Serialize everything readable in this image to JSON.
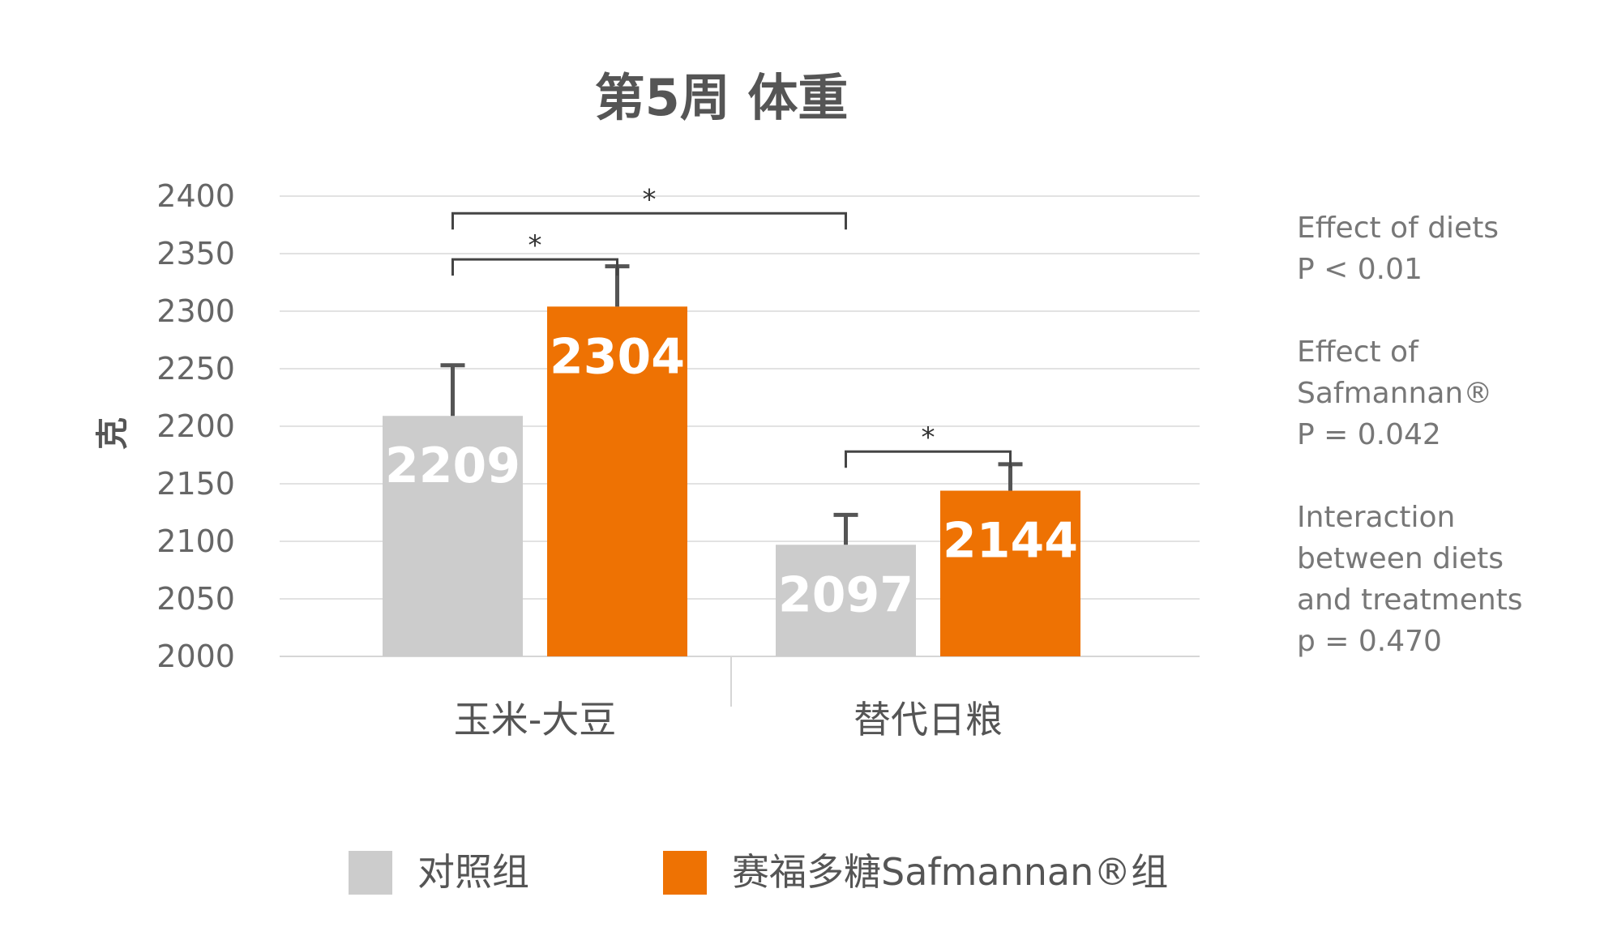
{
  "chart_data": {
    "type": "bar",
    "title": "第5周  体重",
    "ylabel": "克",
    "ylim": [
      2000,
      2400
    ],
    "yticks": [
      2000,
      2050,
      2100,
      2150,
      2200,
      2250,
      2300,
      2350,
      2400
    ],
    "categories": [
      "玉米-大豆",
      "替代日粮"
    ],
    "series": [
      {
        "name": "对照组",
        "color": "#cccccc",
        "values": [
          2209,
          2097
        ],
        "errors": [
          2253,
          2123
        ]
      },
      {
        "name": "赛福多糖Safmannan®组",
        "color": "#ee7203",
        "values": [
          2304,
          2144
        ],
        "errors": [
          2339,
          2167
        ]
      }
    ],
    "data_labels": [
      "2209",
      "2097",
      "2304",
      "2144"
    ],
    "significance": [
      {
        "label": "*",
        "from": [
          0,
          0
        ],
        "to": [
          0,
          1
        ],
        "level": 2345
      },
      {
        "label": "*",
        "from": [
          0,
          0
        ],
        "to": [
          1,
          0
        ],
        "level": 2385
      },
      {
        "label": "*",
        "from": [
          1,
          0
        ],
        "to": [
          1,
          1
        ],
        "level": 2178
      }
    ],
    "legend_position": "bottom",
    "grid": true,
    "annotations": [
      [
        "Effect of diets",
        "P < 0.01"
      ],
      [
        "Effect of",
        "Safmannan®",
        "P = 0.042"
      ],
      [
        "Interaction",
        "between diets",
        "and treatments",
        "p = 0.470"
      ]
    ]
  }
}
